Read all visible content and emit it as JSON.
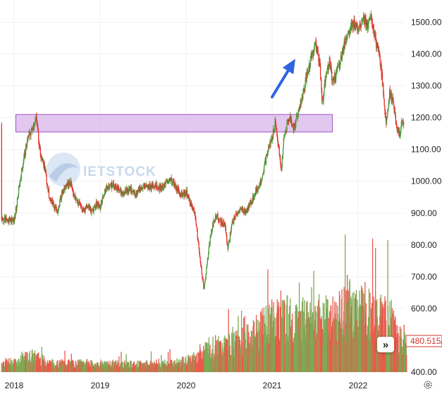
{
  "chart_data": {
    "type": "bar",
    "y_axis": {
      "position": "right",
      "range": [
        400,
        1530
      ],
      "ticks": [
        "1500.00",
        "1400.00",
        "1300.00",
        "1200.00",
        "1100.00",
        "1000.00",
        "900.00",
        "800.00",
        "700.00",
        "600.00",
        "400.00"
      ],
      "tick_values": [
        1500,
        1400,
        1300,
        1200,
        1100,
        1000,
        900,
        800,
        700,
        600,
        400
      ]
    },
    "x_axis": {
      "ticks": [
        "2018",
        "2019",
        "2020",
        "2021",
        "2022"
      ],
      "tick_values": [
        2018.0,
        2019.0,
        2020.0,
        2021.0,
        2022.0
      ],
      "range": [
        2018.0,
        2022.5
      ]
    },
    "price_series": [
      [
        2018.0,
        880
      ],
      [
        2018.05,
        975
      ],
      [
        2018.1,
        1060
      ],
      [
        2018.15,
        1130
      ],
      [
        2018.2,
        1160
      ],
      [
        2018.25,
        1200
      ],
      [
        2018.3,
        1090
      ],
      [
        2018.35,
        1040
      ],
      [
        2018.4,
        960
      ],
      [
        2018.45,
        925
      ],
      [
        2018.5,
        910
      ],
      [
        2018.55,
        960
      ],
      [
        2018.6,
        985
      ],
      [
        2018.65,
        1000
      ],
      [
        2018.7,
        945
      ],
      [
        2018.75,
        930
      ],
      [
        2018.8,
        905
      ],
      [
        2018.85,
        925
      ],
      [
        2018.9,
        905
      ],
      [
        2018.95,
        930
      ],
      [
        2019.0,
        920
      ],
      [
        2019.05,
        970
      ],
      [
        2019.1,
        990
      ],
      [
        2019.15,
        985
      ],
      [
        2019.2,
        980
      ],
      [
        2019.25,
        965
      ],
      [
        2019.3,
        970
      ],
      [
        2019.35,
        975
      ],
      [
        2019.4,
        960
      ],
      [
        2019.45,
        975
      ],
      [
        2019.5,
        985
      ],
      [
        2019.55,
        978
      ],
      [
        2019.6,
        990
      ],
      [
        2019.65,
        985
      ],
      [
        2019.7,
        980
      ],
      [
        2019.75,
        985
      ],
      [
        2019.8,
        1010
      ],
      [
        2019.85,
        990
      ],
      [
        2019.9,
        970
      ],
      [
        2019.95,
        960
      ],
      [
        2020.0,
        965
      ],
      [
        2020.05,
        925
      ],
      [
        2020.1,
        900
      ],
      [
        2020.13,
        815
      ],
      [
        2020.17,
        730
      ],
      [
        2020.2,
        660
      ],
      [
        2020.23,
        720
      ],
      [
        2020.27,
        810
      ],
      [
        2020.3,
        860
      ],
      [
        2020.35,
        895
      ],
      [
        2020.4,
        870
      ],
      [
        2020.45,
        865
      ],
      [
        2020.48,
        785
      ],
      [
        2020.52,
        855
      ],
      [
        2020.55,
        880
      ],
      [
        2020.6,
        905
      ],
      [
        2020.65,
        910
      ],
      [
        2020.7,
        905
      ],
      [
        2020.75,
        935
      ],
      [
        2020.8,
        965
      ],
      [
        2020.85,
        990
      ],
      [
        2020.9,
        1040
      ],
      [
        2020.95,
        1100
      ],
      [
        2021.0,
        1140
      ],
      [
        2021.03,
        1190
      ],
      [
        2021.07,
        1105
      ],
      [
        2021.1,
        1030
      ],
      [
        2021.13,
        1130
      ],
      [
        2021.17,
        1180
      ],
      [
        2021.2,
        1200
      ],
      [
        2021.25,
        1165
      ],
      [
        2021.3,
        1220
      ],
      [
        2021.35,
        1270
      ],
      [
        2021.4,
        1330
      ],
      [
        2021.45,
        1390
      ],
      [
        2021.5,
        1430
      ],
      [
        2021.55,
        1370
      ],
      [
        2021.58,
        1240
      ],
      [
        2021.62,
        1340
      ],
      [
        2021.66,
        1380
      ],
      [
        2021.7,
        1310
      ],
      [
        2021.75,
        1350
      ],
      [
        2021.8,
        1390
      ],
      [
        2021.85,
        1450
      ],
      [
        2021.9,
        1470
      ],
      [
        2021.95,
        1500
      ],
      [
        2022.0,
        1480
      ],
      [
        2022.05,
        1520
      ],
      [
        2022.1,
        1490
      ],
      [
        2022.15,
        1510
      ],
      [
        2022.2,
        1440
      ],
      [
        2022.25,
        1380
      ],
      [
        2022.28,
        1310
      ],
      [
        2022.32,
        1180
      ],
      [
        2022.36,
        1280
      ],
      [
        2022.4,
        1250
      ],
      [
        2022.44,
        1170
      ],
      [
        2022.48,
        1150
      ],
      [
        2022.5,
        1180
      ]
    ],
    "volume_series": [
      [
        2018.0,
        430
      ],
      [
        2018.1,
        440
      ],
      [
        2018.2,
        450
      ],
      [
        2018.3,
        440
      ],
      [
        2018.4,
        430
      ],
      [
        2018.5,
        425
      ],
      [
        2018.6,
        430
      ],
      [
        2018.7,
        425
      ],
      [
        2018.8,
        430
      ],
      [
        2018.9,
        425
      ],
      [
        2019.0,
        422
      ],
      [
        2019.1,
        425
      ],
      [
        2019.2,
        428
      ],
      [
        2019.3,
        425
      ],
      [
        2019.4,
        424
      ],
      [
        2019.5,
        425
      ],
      [
        2019.6,
        428
      ],
      [
        2019.7,
        425
      ],
      [
        2019.8,
        428
      ],
      [
        2019.9,
        430
      ],
      [
        2020.0,
        435
      ],
      [
        2020.1,
        445
      ],
      [
        2020.2,
        470
      ],
      [
        2020.3,
        480
      ],
      [
        2020.4,
        475
      ],
      [
        2020.5,
        485
      ],
      [
        2020.6,
        490
      ],
      [
        2020.7,
        500
      ],
      [
        2020.8,
        520
      ],
      [
        2020.9,
        540
      ],
      [
        2021.0,
        560
      ],
      [
        2021.1,
        575
      ],
      [
        2021.2,
        560
      ],
      [
        2021.3,
        555
      ],
      [
        2021.4,
        565
      ],
      [
        2021.5,
        570
      ],
      [
        2021.6,
        565
      ],
      [
        2021.7,
        560
      ],
      [
        2021.8,
        575
      ],
      [
        2021.9,
        600
      ],
      [
        2022.0,
        610
      ],
      [
        2022.1,
        585
      ],
      [
        2022.2,
        570
      ],
      [
        2022.3,
        560
      ],
      [
        2022.4,
        550
      ],
      [
        2022.5,
        500
      ]
    ],
    "annotations": {
      "resistance_zone": {
        "x_range": [
          2018.02,
          2021.7
        ],
        "y_range": [
          1155,
          1210
        ],
        "color": "#d8b6ea",
        "border": "#a44fc9"
      },
      "arrow": {
        "from": [
          2021.0,
          1265
        ],
        "to": [
          2021.27,
          1385
        ],
        "color": "#2f64e0"
      }
    },
    "last_value_label": "480.515/",
    "colors": {
      "up": "#4e9a3a",
      "down": "#e5322d",
      "volume_up": "#7daa55",
      "volume_down": "#ea5a4b"
    }
  },
  "watermark": {
    "text": "IETSTOCK",
    "color": "#c9d8ec"
  },
  "controls": {
    "scroll_label": "»",
    "settings_icon": "gear-icon"
  }
}
